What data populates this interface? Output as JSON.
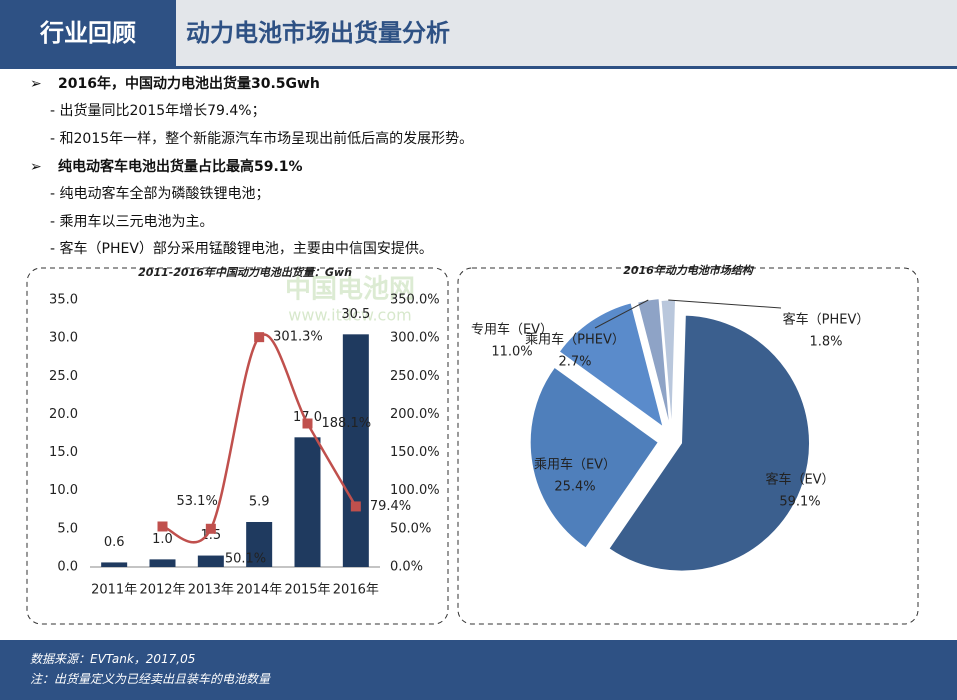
{
  "header": {
    "section": "行业回顾",
    "title": "动力电池市场出货量分析"
  },
  "bullets": [
    {
      "text": "2016年，中国动力电池出货量30.5Gwh",
      "items": [
        "- 出货量同比2015年增长79.4%；",
        "- 和2015年一样，整个新能源汽车市场呈现出前低后高的发展形势。"
      ]
    },
    {
      "text": "纯电动客车电池出货量占比最高59.1%",
      "items": [
        "- 纯电动客车全部为磷酸铁锂电池；",
        "- 乘用车以三元电池为主。",
        "- 客车（PHEV）部分采用锰酸锂电池，主要由中信国安提供。"
      ]
    }
  ],
  "watermark": {
    "name": "中国电池网",
    "url": "www.itdcw.com"
  },
  "chart_data": [
    {
      "type": "bar",
      "title": "2011-2016年中国动力电池出货量：Gwh",
      "categories": [
        "2011年",
        "2012年",
        "2013年",
        "2014年",
        "2015年",
        "2016年"
      ],
      "series": [
        {
          "type": "bar",
          "color": "#1f3a5f",
          "values": [
            0.6,
            1.0,
            1.5,
            5.9,
            17.0,
            30.5
          ],
          "value_labels": [
            "0.6",
            "1.0",
            "1.5",
            "5.9",
            "17.0",
            "30.5"
          ]
        },
        {
          "type": "line",
          "axis": "y2",
          "color": "#c0504d",
          "values": [
            null,
            53.1,
            50.1,
            301.3,
            188.1,
            79.4
          ],
          "value_labels": [
            null,
            "53.1%",
            "50.1%",
            "301.3%",
            "188.1%",
            "79.4%"
          ]
        }
      ],
      "ylim": [
        0,
        35
      ],
      "yticks": [
        {
          "value": 0,
          "label": "0.0"
        },
        {
          "value": 5,
          "label": "5.0"
        },
        {
          "value": 10,
          "label": "10.0"
        },
        {
          "value": 15,
          "label": "15.0"
        },
        {
          "value": 20,
          "label": "20.0"
        },
        {
          "value": 25,
          "label": "25.0"
        },
        {
          "value": 30,
          "label": "30.0"
        },
        {
          "value": 35,
          "label": "35.0"
        }
      ],
      "y2lim": [
        0,
        350
      ],
      "y2ticks": [
        {
          "value": 0,
          "label": "0.0%"
        },
        {
          "value": 50,
          "label": "50.0%"
        },
        {
          "value": 100,
          "label": "100.0%"
        },
        {
          "value": 150,
          "label": "150.0%"
        },
        {
          "value": 200,
          "label": "200.0%"
        },
        {
          "value": 250,
          "label": "250.0%"
        },
        {
          "value": 300,
          "label": "300.0%"
        },
        {
          "value": 350,
          "label": "350.0%"
        }
      ]
    },
    {
      "type": "pie",
      "title": "2016年动力电池市场结构",
      "categories": [
        "客车（EV）",
        "乘用车（EV）",
        "专用车（EV）",
        "乘用车（PHEV）",
        "客车（PHEV）"
      ],
      "values": [
        59.1,
        25.4,
        11.0,
        2.7,
        1.8
      ],
      "value_labels": [
        "59.1%",
        "25.4%",
        "11.0%",
        "2.7%",
        "1.8%"
      ],
      "colors": [
        "#3b5f8e",
        "#4f7fbb",
        "#5a8bcb",
        "#8ea3c6",
        "#b9c7dc"
      ]
    }
  ],
  "footer": {
    "source": "数据来源：EVTank，2017,05",
    "note": "注：出货量定义为已经卖出且装车的电池数量"
  }
}
